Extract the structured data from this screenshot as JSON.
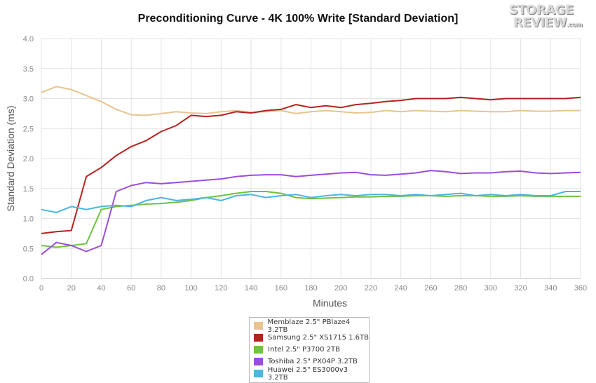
{
  "chart_data": {
    "type": "line",
    "title": "Preconditioning Curve - 4K 100% Write [Standard Deviation]",
    "xlabel": "Minutes",
    "ylabel": "Standard Deviation (ms)",
    "xlim": [
      0,
      360
    ],
    "ylim": [
      0,
      4.0
    ],
    "x_ticks": [
      0,
      20,
      40,
      60,
      80,
      100,
      120,
      140,
      160,
      180,
      200,
      220,
      240,
      260,
      280,
      300,
      320,
      340,
      360
    ],
    "y_ticks": [
      0.0,
      0.5,
      1.0,
      1.5,
      2.0,
      2.5,
      3.0,
      3.5,
      4.0
    ],
    "grid": true,
    "legend_position": "bottom-center",
    "x": [
      0,
      10,
      20,
      30,
      40,
      50,
      60,
      70,
      80,
      90,
      100,
      110,
      120,
      130,
      140,
      150,
      160,
      170,
      180,
      190,
      200,
      210,
      220,
      230,
      240,
      250,
      260,
      270,
      280,
      290,
      300,
      310,
      320,
      330,
      340,
      350,
      360
    ],
    "series": [
      {
        "name": "Memblaze 2.5\" PBlaze4 3.2TB",
        "color": "#e8c48f",
        "values": [
          3.1,
          3.2,
          3.15,
          3.05,
          2.95,
          2.82,
          2.73,
          2.72,
          2.75,
          2.78,
          2.76,
          2.75,
          2.78,
          2.8,
          2.77,
          2.78,
          2.8,
          2.75,
          2.78,
          2.8,
          2.78,
          2.76,
          2.77,
          2.8,
          2.78,
          2.8,
          2.79,
          2.78,
          2.8,
          2.79,
          2.78,
          2.78,
          2.8,
          2.79,
          2.79,
          2.8,
          2.8
        ]
      },
      {
        "name": "Samsung 2.5\" XS1715 1.6TB",
        "color": "#b5231f",
        "values": [
          0.75,
          0.78,
          0.8,
          1.7,
          1.85,
          2.05,
          2.2,
          2.3,
          2.45,
          2.55,
          2.72,
          2.7,
          2.72,
          2.78,
          2.76,
          2.8,
          2.82,
          2.9,
          2.85,
          2.88,
          2.85,
          2.9,
          2.92,
          2.95,
          2.97,
          3.0,
          3.0,
          3.0,
          3.02,
          3.0,
          2.98,
          3.0,
          3.0,
          3.0,
          3.0,
          3.0,
          3.02
        ]
      },
      {
        "name": "Intel 2.5\" P3700 2TB",
        "color": "#6ec33f",
        "values": [
          0.55,
          0.52,
          0.55,
          0.58,
          1.15,
          1.2,
          1.22,
          1.24,
          1.25,
          1.27,
          1.3,
          1.35,
          1.38,
          1.42,
          1.45,
          1.45,
          1.42,
          1.35,
          1.33,
          1.34,
          1.35,
          1.36,
          1.36,
          1.37,
          1.37,
          1.38,
          1.38,
          1.37,
          1.38,
          1.38,
          1.37,
          1.37,
          1.38,
          1.37,
          1.37,
          1.37,
          1.37
        ]
      },
      {
        "name": "Toshiba 2.5\" PX04P 3.2TB",
        "color": "#9b4ddc",
        "values": [
          0.4,
          0.6,
          0.55,
          0.45,
          0.55,
          1.45,
          1.55,
          1.6,
          1.58,
          1.6,
          1.62,
          1.64,
          1.66,
          1.7,
          1.72,
          1.73,
          1.73,
          1.7,
          1.72,
          1.74,
          1.76,
          1.77,
          1.73,
          1.72,
          1.74,
          1.76,
          1.8,
          1.78,
          1.75,
          1.76,
          1.76,
          1.78,
          1.79,
          1.76,
          1.75,
          1.76,
          1.77
        ]
      },
      {
        "name": "Huawei 2.5\" ES3000v3 3.2TB",
        "color": "#4cb5e0",
        "values": [
          1.15,
          1.1,
          1.2,
          1.15,
          1.2,
          1.22,
          1.2,
          1.3,
          1.35,
          1.3,
          1.32,
          1.35,
          1.3,
          1.38,
          1.4,
          1.35,
          1.38,
          1.4,
          1.35,
          1.38,
          1.4,
          1.38,
          1.4,
          1.4,
          1.38,
          1.4,
          1.38,
          1.4,
          1.42,
          1.38,
          1.4,
          1.38,
          1.4,
          1.38,
          1.38,
          1.45,
          1.45
        ]
      }
    ]
  },
  "logo": {
    "line1": "STORAGE",
    "line2": "REVIEW",
    "suffix": ".com"
  }
}
